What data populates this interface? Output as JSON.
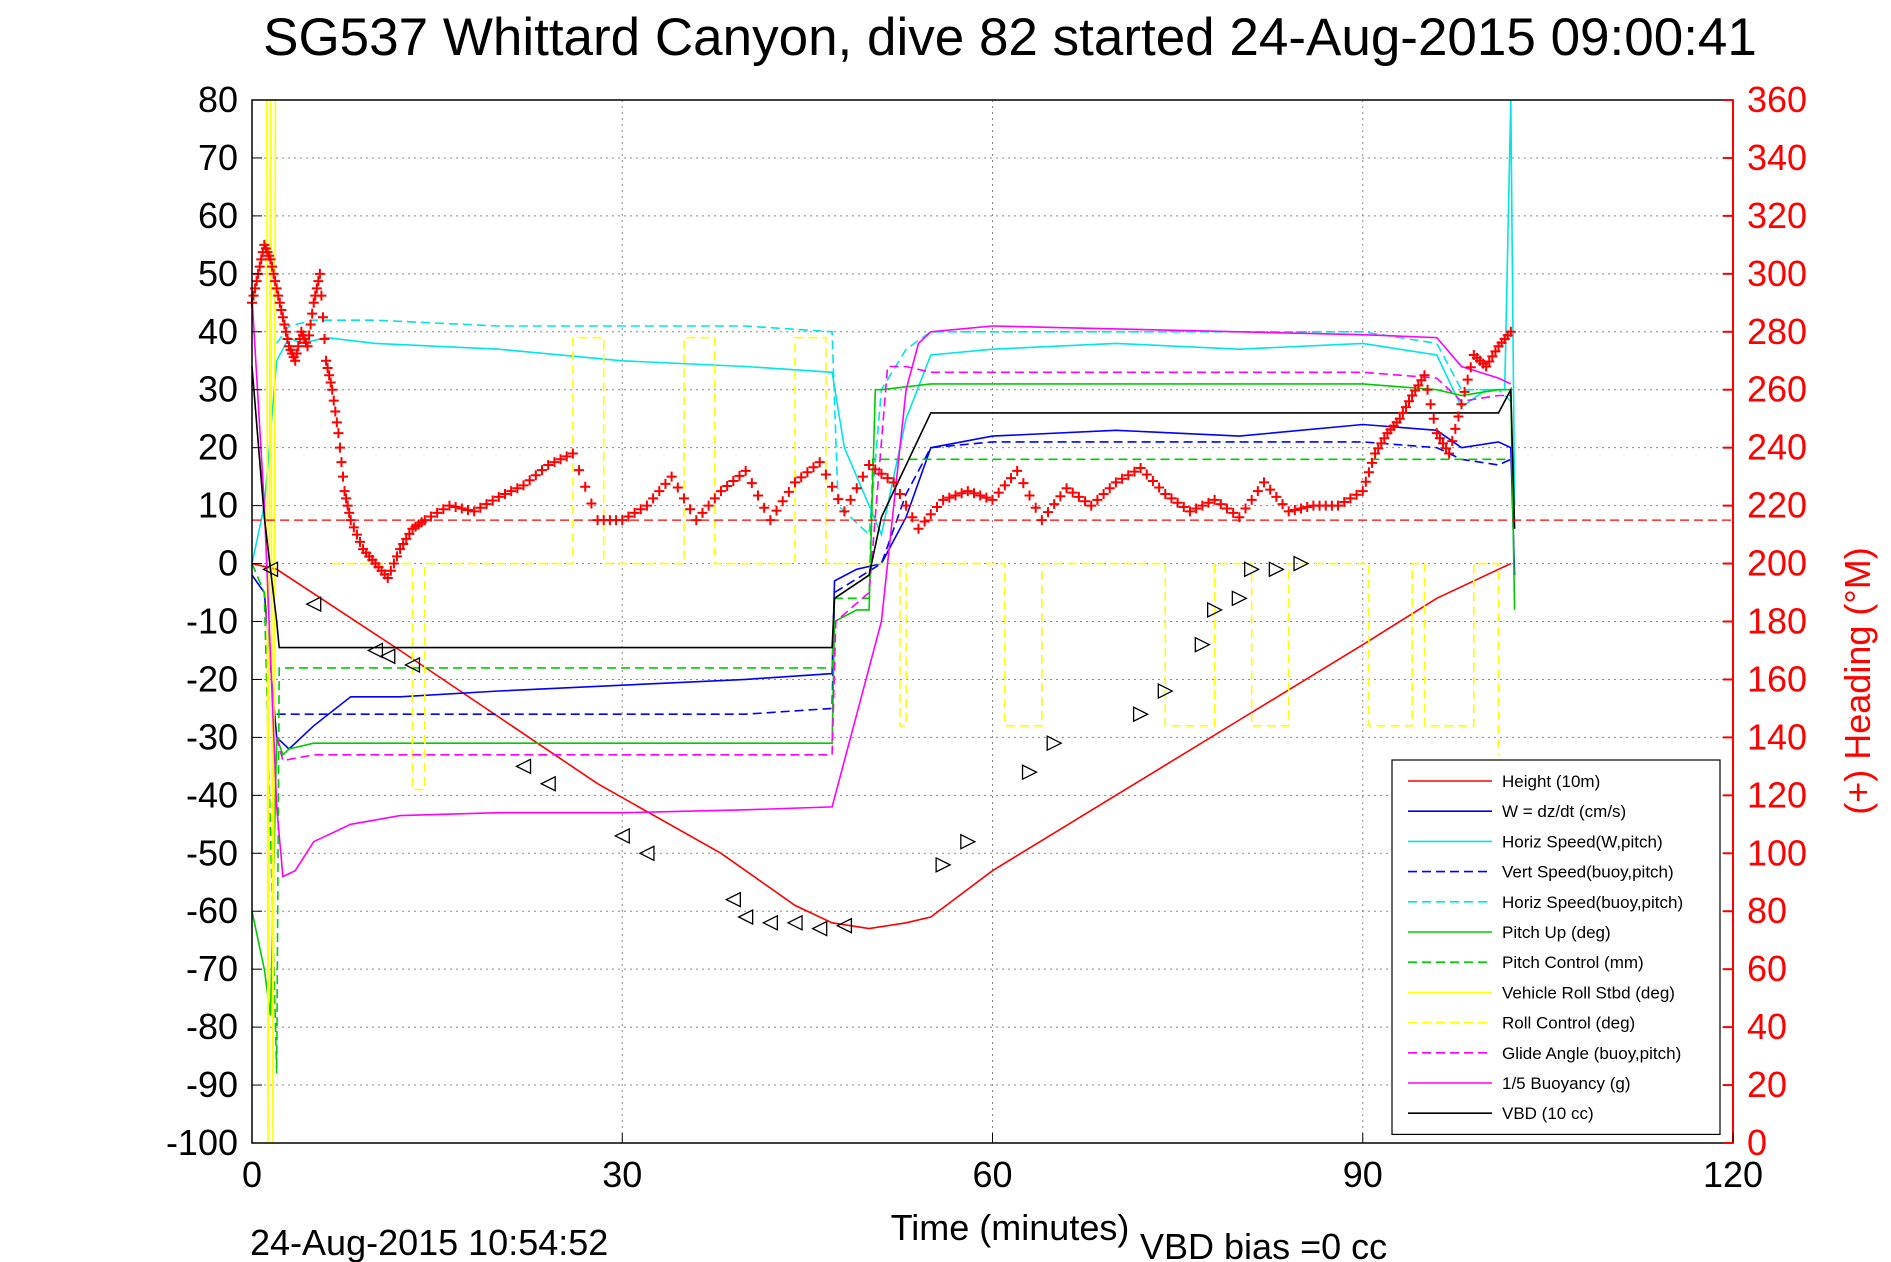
{
  "chart_data": {
    "type": "line",
    "title": "SG537 Whittard Canyon, dive 82 started 24-Aug-2015 09:00:41",
    "xlabel": "Time (minutes)",
    "ylabel": "",
    "y2label": "(+) Heading (°M)",
    "xlim": [
      0,
      120
    ],
    "ylim": [
      -100,
      80
    ],
    "y2lim": [
      0,
      360
    ],
    "xticks": [
      "0",
      "30",
      "60",
      "90",
      "120"
    ],
    "yticks": [
      "-100",
      "-90",
      "-80",
      "-70",
      "-60",
      "-50",
      "-40",
      "-30",
      "-20",
      "-10",
      "0",
      "10",
      "20",
      "30",
      "40",
      "50",
      "60",
      "70",
      "80"
    ],
    "y2ticks": [
      "0",
      "20",
      "40",
      "60",
      "80",
      "100",
      "120",
      "140",
      "160",
      "180",
      "200",
      "220",
      "240",
      "260",
      "280",
      "300",
      "320",
      "340",
      "360"
    ],
    "grid": true,
    "legend_position": "bottom-right",
    "colors": {
      "height": "#ff0000",
      "w": "#0000ff",
      "horiz_speed": "#00e5e5",
      "pitch": "#00cc00",
      "roll": "#ffff00",
      "glide": "#ff00ff",
      "vbd": "#000000",
      "heading": "#ff0000",
      "right_axis": "#ff0000"
    },
    "heading_target": 215,
    "series": [
      {
        "name": "Height (10m)",
        "color": "#ff0000",
        "dash": "solid",
        "x": [
          0,
          2,
          12,
          28,
          38,
          44,
          47,
          50,
          53,
          55,
          60,
          70,
          80,
          90,
          96,
          101,
          102
        ],
        "y": [
          0,
          -1,
          -15,
          -38,
          -50,
          -59,
          -62,
          -63,
          -62,
          -61,
          -53,
          -40,
          -27,
          -14,
          -6,
          -1,
          0
        ]
      },
      {
        "name": "W = dz/dt (cm/s)",
        "color": "#0000ff",
        "dash": "solid",
        "x": [
          0,
          1,
          2,
          3,
          5,
          8,
          12,
          20,
          30,
          40,
          47,
          47.2,
          49,
          51,
          53,
          55,
          60,
          70,
          80,
          90,
          96,
          98,
          101,
          102,
          102.3
        ],
        "y": [
          -2,
          -5,
          -30,
          -32,
          -28,
          -23,
          -23,
          -22,
          -21,
          -20,
          -19,
          -3,
          -1,
          0,
          8,
          20,
          22,
          23,
          22,
          24,
          23,
          20,
          21,
          20,
          -2
        ]
      },
      {
        "name": "Horiz Speed(W,pitch)",
        "color": "#00e5e5",
        "dash": "solid",
        "x": [
          0,
          1,
          2,
          3,
          4,
          6,
          10,
          20,
          30,
          40,
          47,
          48,
          50,
          51,
          53,
          55,
          60,
          70,
          80,
          90,
          96,
          98,
          100,
          101.5,
          102,
          102.3
        ],
        "y": [
          0,
          10,
          35,
          39,
          38,
          39,
          38,
          37,
          35,
          34,
          33,
          20,
          10,
          5,
          25,
          36,
          37,
          38,
          37,
          38,
          36,
          27,
          30,
          30,
          80,
          10
        ]
      },
      {
        "name": "Vert Speed(buoy,pitch)",
        "color": "#0000ff",
        "dash": "dashed",
        "x": [
          2,
          5,
          12,
          20,
          30,
          40,
          47,
          47.2,
          51,
          53,
          55,
          60,
          70,
          80,
          90,
          96,
          98,
          101,
          102
        ],
        "y": [
          -26,
          -26,
          -26,
          -26,
          -26,
          -26,
          -25,
          -5,
          0,
          12,
          20,
          21,
          21,
          21,
          21,
          20,
          18,
          17,
          18
        ]
      },
      {
        "name": "Horiz Speed(buoy,pitch)",
        "color": "#00e5e5",
        "dash": "dashed",
        "x": [
          2,
          3,
          5,
          10,
          20,
          30,
          40,
          47,
          47.5,
          50,
          51,
          53,
          55,
          60,
          70,
          80,
          90,
          96,
          98,
          101,
          102
        ],
        "y": [
          38,
          41,
          42,
          42,
          41,
          41,
          41,
          40,
          10,
          5,
          30,
          37,
          40,
          40,
          40,
          40,
          40,
          38,
          30,
          30,
          28
        ]
      },
      {
        "name": "Pitch Up (deg)",
        "color": "#00cc00",
        "dash": "solid",
        "x": [
          0,
          1,
          1.5,
          2,
          2.5,
          3,
          5,
          10,
          20,
          30,
          40,
          47,
          47.2,
          49,
          50,
          50.5,
          51,
          55,
          60,
          70,
          80,
          90,
          96,
          98,
          101,
          102,
          102.3
        ],
        "y": [
          -60,
          -70,
          -78,
          -30,
          -33,
          -32,
          -31,
          -31,
          -31,
          -31,
          -31,
          -31,
          -10,
          -8,
          -8,
          30,
          30,
          31,
          31,
          31,
          31,
          31,
          30,
          29,
          30,
          30,
          -8
        ]
      },
      {
        "name": "Pitch Control (mm)",
        "color": "#00cc00",
        "dash": "dashed",
        "x": [
          0,
          1,
          2,
          2.2,
          10,
          20,
          30,
          40,
          47,
          47.2,
          50,
          50.3,
          55,
          60,
          70,
          80,
          90,
          96,
          98,
          101,
          102
        ],
        "y": [
          0,
          -5,
          -88,
          -18,
          -18,
          -18,
          -18,
          -18,
          -18,
          -6,
          -6,
          18,
          18,
          18,
          18,
          18,
          18,
          18,
          18,
          18,
          18
        ]
      },
      {
        "name": "Vehicle Roll Stbd (deg)",
        "color": "#ffff00",
        "dash": "solid",
        "x": [
          1.2,
          1.3,
          1.5,
          1.7,
          1.9
        ],
        "y": [
          80,
          -100,
          80,
          -100,
          80
        ]
      },
      {
        "name": "Roll Control (deg)",
        "color": "#ffff00",
        "dash": "dashed",
        "x": [
          6.5,
          6.5,
          13,
          13,
          14,
          14,
          26,
          26,
          28.5,
          28.5,
          35,
          35,
          37.5,
          37.5,
          44,
          44,
          46.5,
          46.5,
          47,
          48,
          50,
          50,
          52.5,
          52.5,
          53,
          53,
          61,
          61,
          64,
          64,
          74,
          74,
          78,
          78,
          81,
          81,
          84,
          84,
          90.5,
          90.5,
          94,
          94,
          95,
          95,
          99,
          99,
          101,
          101
        ],
        "y": [
          0,
          0,
          0,
          -39,
          -39,
          0,
          0,
          39,
          39,
          0,
          0,
          39,
          39,
          0,
          0,
          39,
          39,
          0,
          0,
          0,
          0,
          0,
          0,
          -28,
          -28,
          0,
          0,
          -28,
          -28,
          0,
          0,
          -28,
          -28,
          0,
          0,
          -28,
          -28,
          0,
          0,
          -28,
          -28,
          0,
          0,
          -28,
          -28,
          0,
          0,
          -33
        ]
      },
      {
        "name": "Glide Angle (buoy,pitch)",
        "color": "#ff00ff",
        "dash": "dashed",
        "x": [
          2,
          2.5,
          5,
          12,
          20,
          30,
          40,
          47,
          47.3,
          50,
          51.5,
          53,
          55,
          60,
          70,
          80,
          90,
          96,
          98,
          101,
          102
        ],
        "y": [
          -30,
          -34,
          -33,
          -33,
          -33,
          -33,
          -33,
          -33,
          -10,
          -5,
          34,
          34,
          33,
          33,
          33,
          33,
          33,
          32,
          28,
          29,
          29
        ]
      },
      {
        "name": "1/5 Buoyancy (g)",
        "color": "#ff00ff",
        "dash": "solid",
        "x": [
          0,
          1,
          2,
          2.5,
          3.5,
          5,
          8,
          12,
          20,
          30,
          40,
          47,
          51,
          53,
          54,
          55,
          60,
          70,
          80,
          90,
          96,
          98,
          101,
          102
        ],
        "y": [
          46,
          10,
          -42,
          -54,
          -53,
          -48,
          -45,
          -43.5,
          -43,
          -43,
          -42.5,
          -42,
          -10,
          30,
          38,
          40,
          41,
          40.5,
          40,
          39.5,
          39,
          34,
          32,
          31
        ]
      },
      {
        "name": "VBD (10 cc)",
        "color": "#000000",
        "dash": "solid",
        "x": [
          0,
          1,
          2,
          2.2,
          10,
          20,
          30,
          40,
          47,
          47.2,
          50,
          51,
          55,
          60,
          70,
          80,
          90,
          96,
          98,
          101,
          102,
          102.3
        ],
        "y": [
          34,
          8,
          -10,
          -14.5,
          -14.5,
          -14.5,
          -14.5,
          -14.5,
          -14.5,
          -6,
          -2,
          8,
          26,
          26,
          26,
          26,
          26,
          26,
          26,
          26,
          30,
          6
        ]
      }
    ],
    "heading": {
      "name": "(+) Heading (°M)",
      "color": "#ff0000",
      "x": [
        0,
        0.5,
        1,
        1.5,
        2,
        2.5,
        3,
        3.5,
        4,
        4.5,
        5,
        5.5,
        6,
        6.5,
        7,
        7.5,
        8,
        9,
        10,
        11,
        12,
        13,
        14,
        16,
        18,
        20,
        22,
        24,
        26,
        28,
        30,
        32,
        34,
        36,
        38,
        40,
        42,
        44,
        46,
        48,
        50,
        52,
        54,
        56,
        58,
        60,
        62,
        64,
        66,
        68,
        70,
        72,
        74,
        76,
        78,
        80,
        82,
        84,
        86,
        88,
        90,
        91,
        92,
        93,
        94,
        95,
        96,
        97,
        98,
        99,
        100,
        101,
        102
      ],
      "y": [
        290,
        300,
        310,
        305,
        295,
        285,
        275,
        270,
        280,
        275,
        290,
        300,
        270,
        260,
        245,
        225,
        215,
        205,
        200,
        195,
        205,
        212,
        215,
        220,
        218,
        223,
        227,
        234,
        238,
        215,
        215,
        220,
        230,
        215,
        225,
        232,
        215,
        228,
        235,
        218,
        234,
        228,
        212,
        222,
        225,
        222,
        232,
        215,
        226,
        220,
        228,
        233,
        224,
        218,
        222,
        216,
        228,
        218,
        220,
        220,
        225,
        238,
        245,
        250,
        258,
        265,
        245,
        238,
        255,
        272,
        268,
        275,
        280
      ]
    },
    "markers": {
      "x": [
        1.5,
        5,
        10,
        11,
        13,
        22,
        24,
        30,
        32,
        39,
        40,
        42,
        44,
        46,
        48,
        56,
        58,
        63,
        65,
        72,
        74,
        77,
        78,
        80,
        81,
        83,
        85
      ],
      "y": [
        -1,
        -7,
        -15,
        -16,
        -17.5,
        -35,
        -38,
        -47,
        -50,
        -58,
        -61,
        -62,
        -62,
        -63,
        -62.5,
        -52,
        -48,
        -36,
        -31,
        -26,
        -22,
        -14,
        -8,
        -6,
        -1,
        -1,
        0
      ]
    },
    "footer_left": "24-Aug-2015 10:54:52",
    "footer_right": "VBD bias =0 cc"
  }
}
